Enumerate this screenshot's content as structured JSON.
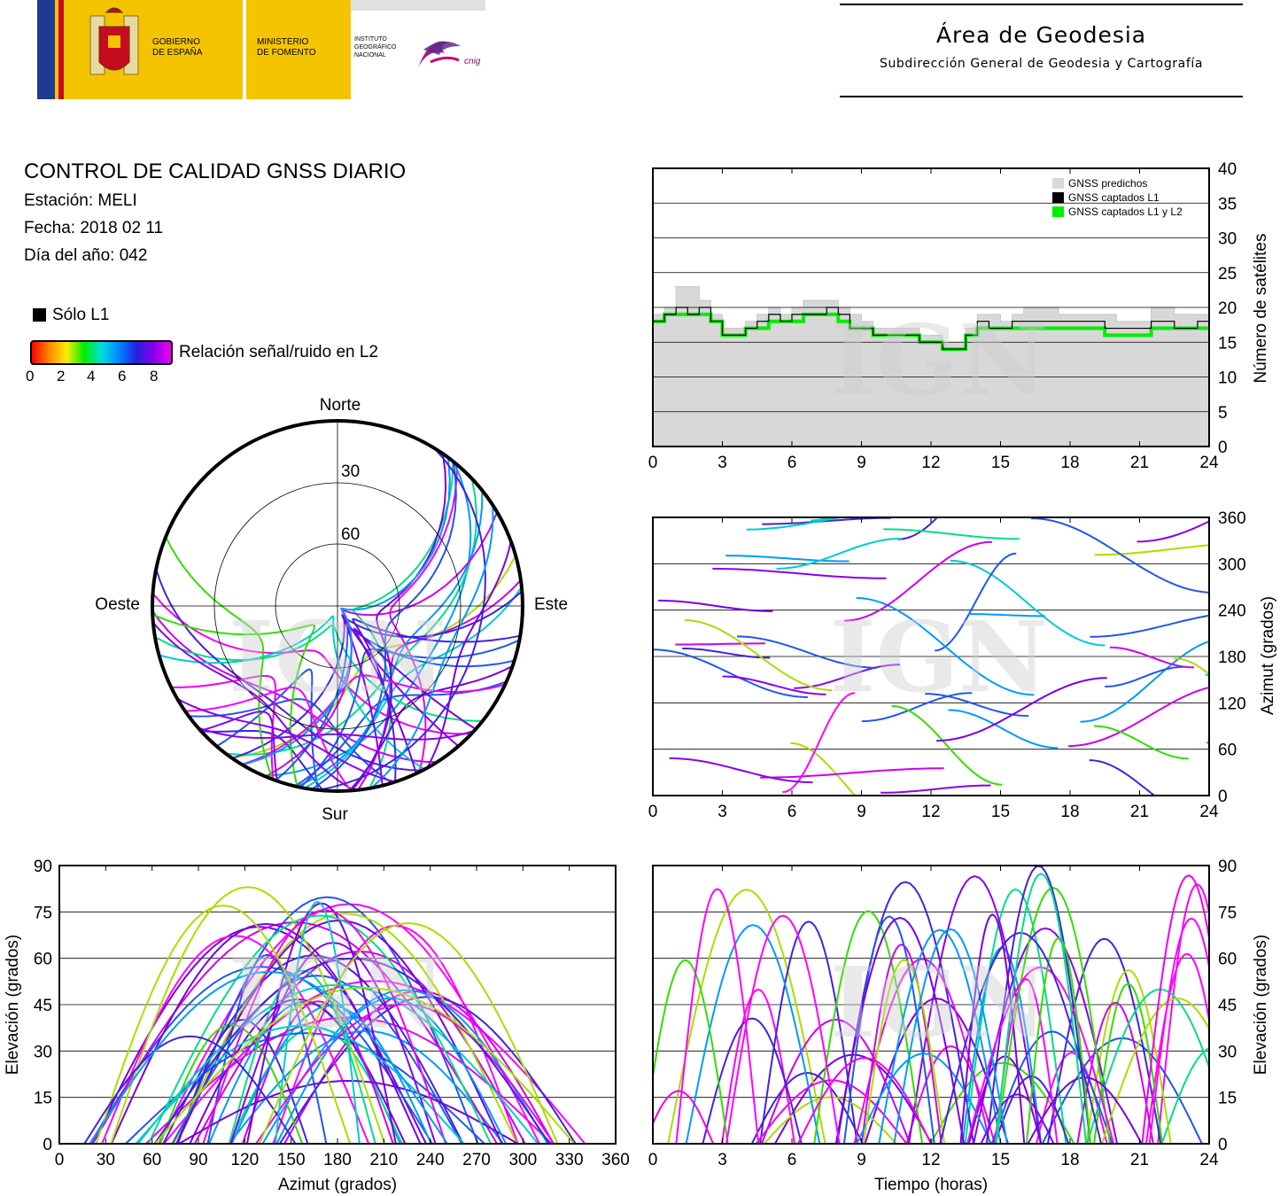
{
  "header": {
    "gobierno": [
      "GOBIERNO",
      "DE ESPAÑA"
    ],
    "ministerio": [
      "MINISTERIO",
      "DE FOMENTO"
    ],
    "instituto": [
      "INSTITUTO",
      "GEOGRÁFICO",
      "NACIONAL"
    ],
    "cnig": "cnig",
    "area_title": "Área de Geodesia",
    "area_subtitle": "Subdirección General de Geodesia y Cartografía"
  },
  "report": {
    "title": "CONTROL DE CALIDAD GNSS DIARIO",
    "station": "Estación: MELI",
    "date": "Fecha: 2018 02 11",
    "doy": "Día del año: 042"
  },
  "legend": {
    "l1_only": "Sólo L1",
    "snr_label": "Relación señal/ruido en L2",
    "snr_ticks": [
      "0",
      "2",
      "4",
      "6",
      "8"
    ],
    "colors": {
      "l1": "#000000",
      "predicted": "#d8d8d8",
      "l1l2": "#00ee00"
    }
  },
  "watermark": "IGN",
  "chart_data": [
    {
      "type": "polar-skyplot",
      "direction_labels": {
        "north": "Norte",
        "south": "Sur",
        "east": "Este",
        "west": "Oeste"
      },
      "elevation_rings": [
        "30",
        "60"
      ]
    },
    {
      "type": "line",
      "legend": [
        "GNSS predichos",
        "GNSS captados L1",
        "GNSS captados L1 y L2"
      ],
      "ylabel": "Número de satélites",
      "xticks": [
        "0",
        "3",
        "6",
        "9",
        "12",
        "15",
        "18",
        "21",
        "24"
      ],
      "yticks": [
        "0",
        "5",
        "10",
        "15",
        "20",
        "25",
        "30",
        "35",
        "40"
      ],
      "xlim": [
        0,
        24
      ],
      "ylim": [
        0,
        40
      ],
      "x": [
        0,
        0.5,
        1,
        1.5,
        2,
        2.5,
        3,
        3.5,
        4,
        4.5,
        5,
        5.5,
        6,
        6.5,
        7,
        7.5,
        8,
        8.5,
        9,
        9.5,
        10,
        10.5,
        11,
        11.5,
        12,
        12.5,
        13,
        13.5,
        14,
        14.5,
        15,
        15.5,
        16,
        16.5,
        17,
        17.5,
        18,
        18.5,
        19,
        19.5,
        20,
        20.5,
        21,
        21.5,
        22,
        22.5,
        23,
        23.5,
        24
      ],
      "series": [
        {
          "name": "GNSS predichos",
          "values": [
            19,
            20,
            23,
            23,
            21,
            19,
            17,
            17,
            18,
            19,
            20,
            19,
            20,
            21,
            21,
            21,
            20,
            19,
            18,
            17,
            17,
            17,
            17,
            16,
            16,
            15,
            15,
            17,
            19,
            19,
            18,
            19,
            20,
            20,
            20,
            19,
            19,
            19,
            19,
            19,
            18,
            18,
            18,
            20,
            20,
            19,
            19,
            19,
            19
          ]
        },
        {
          "name": "GNSS captados L1",
          "values": [
            18,
            19,
            20,
            19,
            20,
            18,
            16,
            16,
            17,
            18,
            19,
            18,
            19,
            19,
            19,
            20,
            19,
            17,
            17,
            16,
            16,
            16,
            16,
            15,
            15,
            14,
            14,
            16,
            18,
            17,
            17,
            18,
            18,
            18,
            18,
            18,
            18,
            18,
            18,
            17,
            17,
            17,
            17,
            18,
            18,
            17,
            17,
            18,
            18
          ]
        },
        {
          "name": "GNSS captados L1 y L2",
          "values": [
            18,
            19,
            19,
            19,
            19,
            18,
            16,
            16,
            17,
            17,
            18,
            18,
            18,
            19,
            19,
            19,
            18,
            17,
            17,
            16,
            16,
            16,
            16,
            15,
            15,
            14,
            14,
            16,
            17,
            17,
            17,
            17,
            17,
            17,
            17,
            17,
            17,
            17,
            17,
            16,
            16,
            16,
            16,
            17,
            17,
            17,
            17,
            17,
            17
          ]
        }
      ]
    },
    {
      "type": "scatter",
      "ylabel": "Azimut (grados)",
      "xticks": [
        "0",
        "3",
        "6",
        "9",
        "12",
        "15",
        "18",
        "21",
        "24"
      ],
      "yticks": [
        "0",
        "60",
        "120",
        "180",
        "240",
        "300",
        "360"
      ],
      "xlim": [
        0,
        24
      ],
      "ylim": [
        0,
        360
      ]
    },
    {
      "type": "scatter",
      "xlabel": "Azimut (grados)",
      "ylabel": "Elevación (grados)",
      "xticks": [
        "0",
        "30",
        "60",
        "90",
        "120",
        "150",
        "180",
        "210",
        "240",
        "270",
        "300",
        "330",
        "360"
      ],
      "yticks": [
        "0",
        "15",
        "30",
        "45",
        "60",
        "75",
        "90"
      ],
      "xlim": [
        0,
        360
      ],
      "ylim": [
        0,
        90
      ]
    },
    {
      "type": "scatter",
      "xlabel": "Tiempo (horas)",
      "ylabel": "Elevación (grados)",
      "xticks": [
        "0",
        "3",
        "6",
        "9",
        "12",
        "15",
        "18",
        "21",
        "24"
      ],
      "yticks": [
        "0",
        "15",
        "30",
        "45",
        "60",
        "75",
        "90"
      ],
      "xlim": [
        0,
        24
      ],
      "ylim": [
        0,
        90
      ]
    }
  ]
}
